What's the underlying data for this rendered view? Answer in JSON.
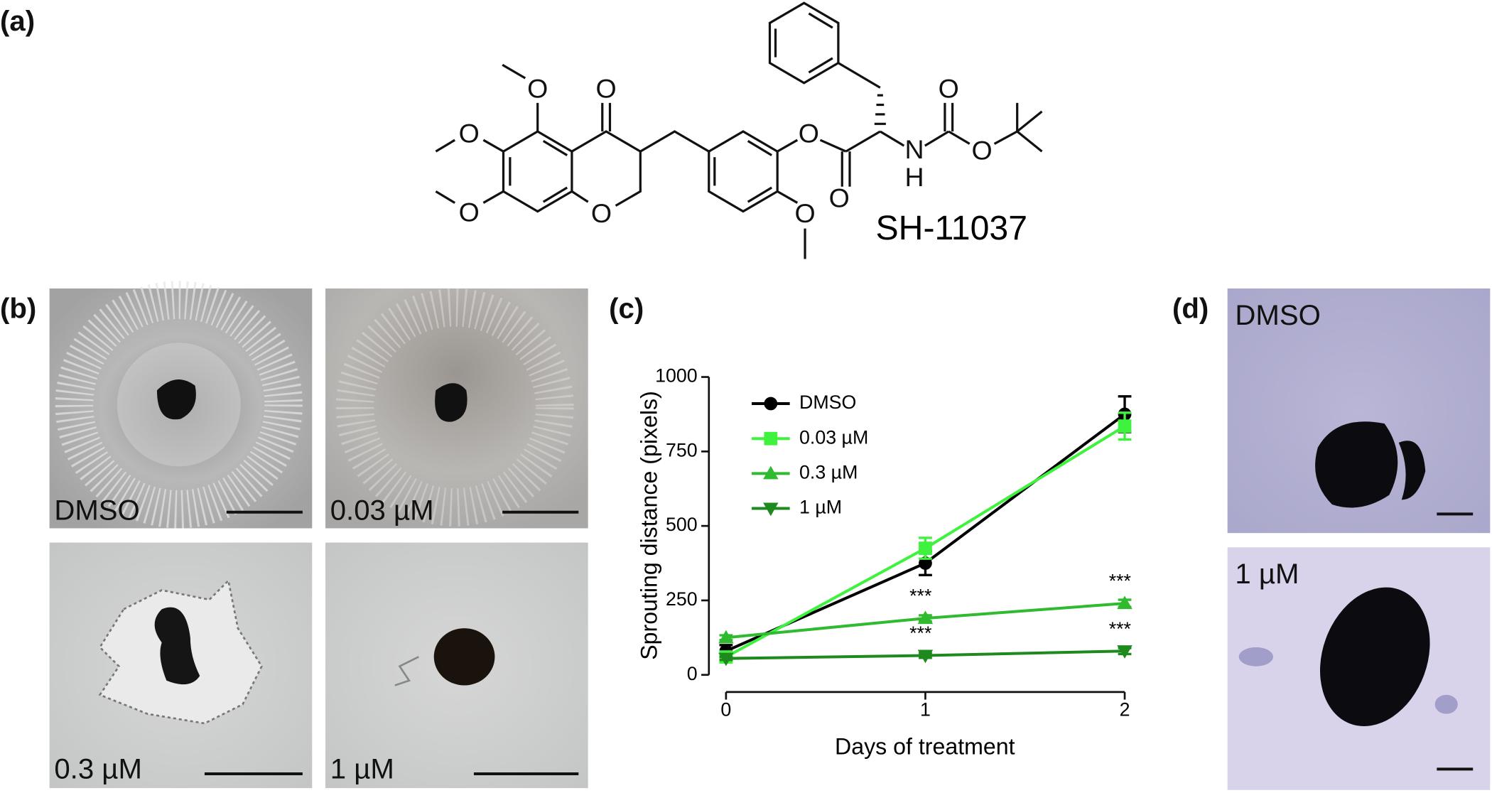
{
  "panel_labels": [
    "(a)",
    "(b)",
    "(c)",
    "(d)"
  ],
  "structure": {
    "name": "SH-11037",
    "atoms": [
      "O",
      "O",
      "O",
      "O",
      "O",
      "O",
      "O",
      "O",
      "N",
      "H",
      "O",
      "O"
    ]
  },
  "panel_b": {
    "captions": [
      "DMSO",
      "0.03 µM",
      "0.3 µM",
      "1 µM"
    ]
  },
  "panel_d": {
    "captions": [
      "DMSO",
      "1 µM"
    ]
  },
  "chart_data": {
    "type": "line",
    "x_label": "Days of treatment",
    "y_label": "Sprouting distance (pixels)",
    "x": [
      0,
      1,
      2
    ],
    "xlim": [
      0,
      2
    ],
    "xticks": [
      0,
      1,
      2
    ],
    "ylim": [
      0,
      1000
    ],
    "yticks": [
      0,
      250,
      500,
      750,
      1000
    ],
    "series": [
      {
        "name": "DMSO",
        "color": "#000000",
        "marker": "circle",
        "values": [
          80,
          375,
          875
        ],
        "errors": [
          20,
          40,
          60
        ],
        "annotations": [
          null,
          null,
          null
        ]
      },
      {
        "name": "0.03 µM",
        "color": "#3ef23e",
        "marker": "square",
        "values": [
          60,
          425,
          835
        ],
        "errors": [
          10,
          35,
          45
        ],
        "annotations": [
          null,
          null,
          null
        ]
      },
      {
        "name": "0.3 µM",
        "color": "#2fba2f",
        "marker": "triangle-up",
        "values": [
          125,
          190,
          240
        ],
        "errors": [
          8,
          10,
          12
        ],
        "annotations": [
          null,
          "***",
          "***"
        ]
      },
      {
        "name": "1 µM",
        "color": "#1e8a1e",
        "marker": "triangle-down",
        "values": [
          55,
          65,
          80
        ],
        "errors": [
          5,
          8,
          10
        ],
        "annotations": [
          null,
          "***",
          "***"
        ]
      }
    ]
  }
}
